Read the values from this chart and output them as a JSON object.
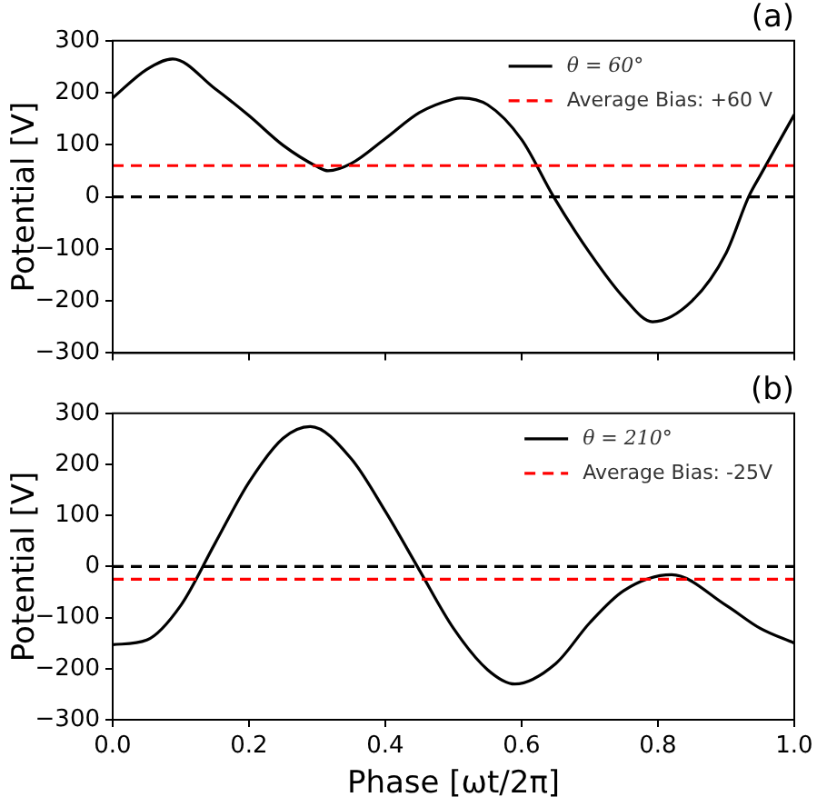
{
  "chart_data": [
    {
      "type": "line",
      "title": "(a)",
      "ylabel": "Potential [V]",
      "x": [
        0,
        0.05,
        0.088,
        0.15,
        0.2,
        0.25,
        0.3,
        0.316,
        0.35,
        0.4,
        0.45,
        0.5,
        0.51,
        0.55,
        0.6,
        0.647,
        0.7,
        0.75,
        0.792,
        0.85,
        0.9,
        0.933,
        0.95,
        1.0
      ],
      "series": [
        {
          "name": "θ = 60°",
          "color": "#000000",
          "values": [
            190,
            245,
            265,
            208,
            156,
            99,
            58,
            50,
            64,
            112,
            162,
            188,
            190,
            177,
            110,
            0,
            -108,
            -194,
            -240,
            -200,
            -108,
            0,
            41,
            158
          ]
        }
      ],
      "ref_lines": [
        {
          "axis": "y",
          "value": 0,
          "color": "#000000",
          "line_style": "dashed"
        },
        {
          "axis": "y",
          "value": 60,
          "label": "Average Bias: +60 V",
          "color": "#ff0000",
          "line_style": "dashed"
        }
      ],
      "xlim": [
        0,
        1
      ],
      "xticks": [
        0,
        0.2,
        0.4,
        0.6,
        0.8,
        1
      ],
      "ylim": [
        -300,
        300
      ],
      "yticks": [
        {
          "value": -300,
          "label": "−300"
        },
        {
          "value": -200,
          "label": "−200"
        },
        {
          "value": -100,
          "label": "−100"
        },
        0,
        100,
        200,
        300
      ],
      "tick_labels": "y",
      "legend": "top right",
      "marker": "none",
      "line_style": "solid"
    },
    {
      "type": "line",
      "title": "(b)",
      "xlabel": "Phase [ωt/2π]",
      "ylabel": "Potential [V]",
      "x": [
        0,
        0.05,
        0.1,
        0.15,
        0.2,
        0.25,
        0.29,
        0.35,
        0.4,
        0.45,
        0.5,
        0.55,
        0.59,
        0.65,
        0.7,
        0.75,
        0.82,
        0.9,
        0.95,
        1.0
      ],
      "series": [
        {
          "name": "θ = 210°",
          "color": "#000000",
          "values": [
            -153,
            -144,
            -76,
            45,
            165,
            251,
            274,
            211,
            108,
            -7,
            -121,
            -202,
            -230,
            -190,
            -110,
            -47,
            -16,
            -76,
            -121,
            -150
          ]
        }
      ],
      "ref_lines": [
        {
          "axis": "y",
          "value": 0,
          "color": "#000000",
          "line_style": "dashed"
        },
        {
          "axis": "y",
          "value": -25,
          "label": "Average Bias: -25V",
          "color": "#ff0000",
          "line_style": "dashed"
        }
      ],
      "xlim": [
        0,
        1
      ],
      "xticks": [
        {
          "value": 0,
          "label": "0.0"
        },
        {
          "value": 0.2,
          "label": "0.2"
        },
        {
          "value": 0.4,
          "label": "0.4"
        },
        {
          "value": 0.6,
          "label": "0.6"
        },
        {
          "value": 0.8,
          "label": "0.8"
        },
        {
          "value": 1,
          "label": "1.0"
        }
      ],
      "ylim": [
        -300,
        300
      ],
      "yticks": [
        {
          "value": -300,
          "label": "−300"
        },
        {
          "value": -200,
          "label": "−200"
        },
        {
          "value": -100,
          "label": "−100"
        },
        0,
        100,
        200,
        300
      ],
      "legend": "top right",
      "marker": "none",
      "line_style": "solid"
    }
  ]
}
